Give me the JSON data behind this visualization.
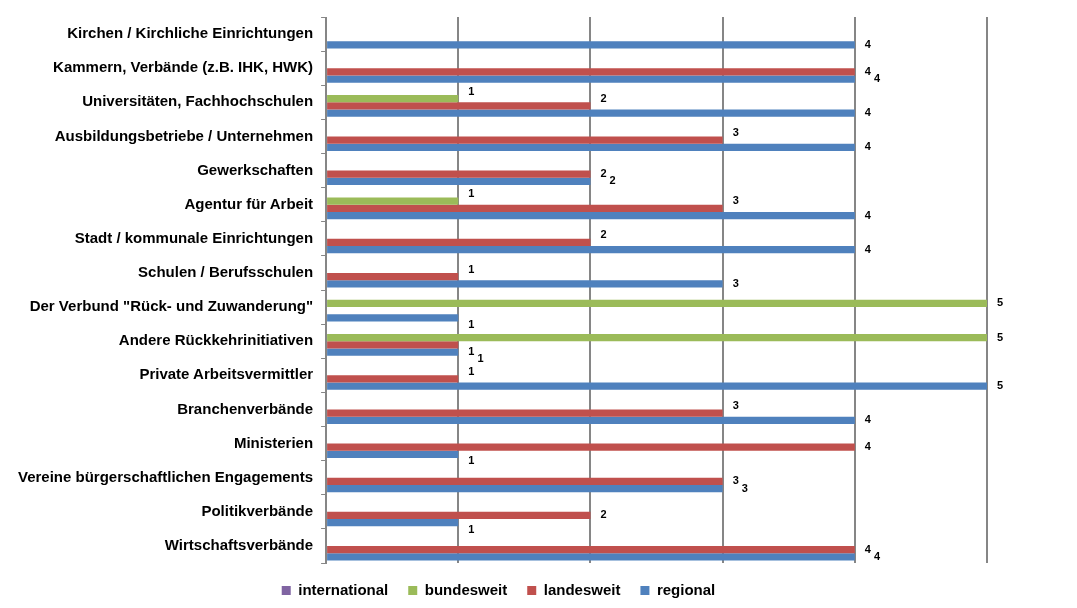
{
  "chart_data": {
    "type": "bar",
    "orientation": "horizontal",
    "categories": [
      "Kirchen / Kirchliche Einrichtungen",
      "Kammern, Verbände (z.B. IHK, HWK)",
      "Universitäten, Fachhochschulen",
      "Ausbildungsbetriebe / Unternehmen",
      "Gewerkschaften",
      "Agentur für Arbeit",
      "Stadt / kommunale Einrichtungen",
      "Schulen / Berufsschulen",
      "Der Verbund \"Rück- und Zuwanderung\"",
      "Andere Rückkehrinitiativen",
      "Private Arbeitsvermittler",
      "Branchenverbände",
      "Ministerien",
      "Vereine bürgerschaftlichen Engagements",
      "Politikverbände",
      "Wirtschaftsverbände"
    ],
    "series": [
      {
        "name": "international",
        "color": "#8064a2",
        "values": [
          null,
          null,
          null,
          null,
          null,
          null,
          null,
          null,
          null,
          null,
          null,
          null,
          null,
          null,
          null,
          null
        ]
      },
      {
        "name": "bundesweit",
        "color": "#9bbb59",
        "values": [
          null,
          null,
          1,
          null,
          null,
          1,
          null,
          null,
          5,
          5,
          null,
          null,
          null,
          null,
          null,
          null
        ]
      },
      {
        "name": "landesweit",
        "color": "#c0504d",
        "values": [
          null,
          4,
          2,
          3,
          2,
          3,
          2,
          1,
          null,
          1,
          1,
          3,
          4,
          3,
          2,
          4
        ]
      },
      {
        "name": "regional",
        "color": "#4f81bd",
        "values": [
          4,
          4,
          4,
          4,
          2,
          4,
          4,
          3,
          1,
          1,
          5,
          4,
          1,
          3,
          1,
          4
        ]
      }
    ],
    "xlim": [
      0,
      5
    ],
    "xticks": [
      {
        "value": 0,
        "label": null
      },
      {
        "value": 1,
        "label": null
      },
      {
        "value": 2,
        "label": null
      },
      {
        "value": 3,
        "label": null
      },
      {
        "value": 4,
        "label": null
      },
      {
        "value": 5,
        "label": null
      }
    ],
    "tick_labels": "y",
    "grid": "x",
    "legend": "bottom",
    "data_labels": true
  }
}
